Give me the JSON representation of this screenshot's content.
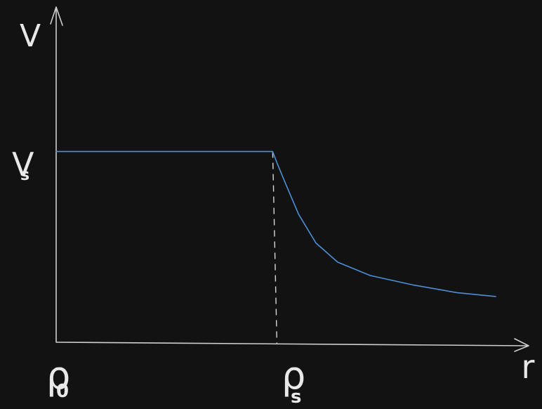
{
  "chart_data": {
    "type": "line",
    "xlabel": "r",
    "ylabel": "V",
    "x_ticks": [
      {
        "main": "ρ",
        "sub": "0"
      },
      {
        "main": "ρ",
        "sub": "s"
      }
    ],
    "y_ticks": [
      {
        "main": "V",
        "sub": "s"
      }
    ],
    "series": [
      {
        "color": "#4d8fd6",
        "points": [
          {
            "x": 0,
            "y": 1
          },
          {
            "x": 1,
            "y": 1
          },
          {
            "x": 1.02,
            "y": 0.94
          },
          {
            "x": 1.06,
            "y": 0.83
          },
          {
            "x": 1.12,
            "y": 0.67
          },
          {
            "x": 1.2,
            "y": 0.52
          },
          {
            "x": 1.3,
            "y": 0.42
          },
          {
            "x": 1.45,
            "y": 0.35
          },
          {
            "x": 1.65,
            "y": 0.3
          },
          {
            "x": 1.85,
            "y": 0.26
          },
          {
            "x": 2.03,
            "y": 0.24
          }
        ]
      }
    ],
    "reference_line": {
      "x": 1,
      "style": "dashed"
    },
    "xlim": [
      0,
      2.14
    ],
    "ylim": [
      0,
      1.75
    ],
    "grid": false,
    "legend": "none"
  }
}
